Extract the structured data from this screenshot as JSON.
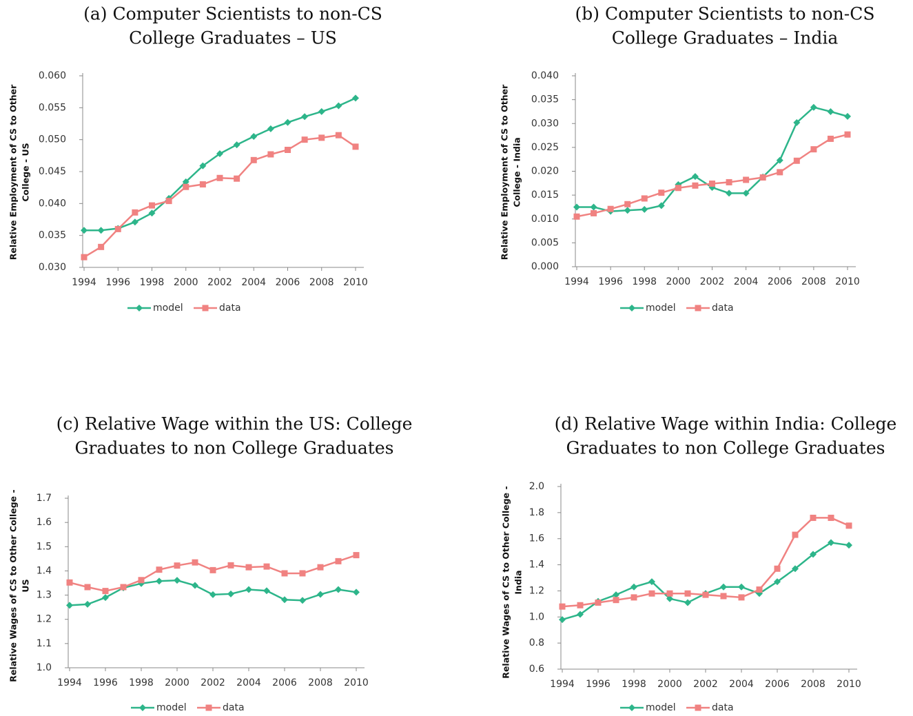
{
  "chart_data": [
    {
      "type": "line",
      "title": [
        "(a) Computer Scientists to non-CS",
        "College Graduates – US"
      ],
      "ylabel": [
        "Relative Employment of CS to Other",
        "College - US"
      ],
      "x": [
        1994,
        1995,
        1996,
        1997,
        1998,
        1999,
        2000,
        2001,
        2002,
        2003,
        2004,
        2005,
        2006,
        2007,
        2008,
        2009,
        2010
      ],
      "xlim": [
        1994,
        2010
      ],
      "xticks": [
        1994,
        1996,
        1998,
        2000,
        2002,
        2004,
        2006,
        2008,
        2010
      ],
      "ylim": [
        0.03,
        0.06
      ],
      "yticks": [
        {
          "value": 0.03,
          "label": "0.030"
        },
        {
          "value": 0.035,
          "label": "0.035"
        },
        {
          "value": 0.04,
          "label": "0.040"
        },
        {
          "value": 0.045,
          "label": "0.045"
        },
        {
          "value": 0.05,
          "label": "0.050"
        },
        {
          "value": 0.055,
          "label": "0.055"
        },
        {
          "value": 0.06,
          "label": "0.060"
        }
      ],
      "legend": "bottom",
      "series": [
        {
          "name": "model",
          "color": "#2db58a",
          "marker": "diamond",
          "values": [
            0.0358,
            0.0358,
            0.0361,
            0.0371,
            0.0385,
            0.0408,
            0.0434,
            0.0459,
            0.0478,
            0.0492,
            0.0505,
            0.0517,
            0.0527,
            0.0536,
            0.0544,
            0.0553,
            0.0565
          ]
        },
        {
          "name": "data",
          "color": "#f08281",
          "marker": "square",
          "values": [
            0.0316,
            0.0332,
            0.036,
            0.0386,
            0.0397,
            0.0404,
            0.0426,
            0.043,
            0.044,
            0.0439,
            0.0468,
            0.0477,
            0.0484,
            0.05,
            0.0503,
            0.0507,
            0.0489
          ]
        }
      ]
    },
    {
      "type": "line",
      "title": [
        "(b) Computer Scientists to non-CS",
        "College Graduates – India"
      ],
      "ylabel": [
        "Relative Employment of CS to Other",
        "College - India"
      ],
      "x": [
        1994,
        1995,
        1996,
        1997,
        1998,
        1999,
        2000,
        2001,
        2002,
        2003,
        2004,
        2005,
        2006,
        2007,
        2008,
        2009,
        2010
      ],
      "xlim": [
        1994,
        2010
      ],
      "xticks": [
        1994,
        1996,
        1998,
        2000,
        2002,
        2004,
        2006,
        2008,
        2010
      ],
      "ylim": [
        0,
        0.04
      ],
      "yticks": [
        {
          "value": 0,
          "label": "0.000"
        },
        {
          "value": 0.005,
          "label": "0.005"
        },
        {
          "value": 0.01,
          "label": "0.010"
        },
        {
          "value": 0.015,
          "label": "0.015"
        },
        {
          "value": 0.02,
          "label": "0.020"
        },
        {
          "value": 0.025,
          "label": "0.025"
        },
        {
          "value": 0.03,
          "label": "0.030"
        },
        {
          "value": 0.035,
          "label": "0.035"
        },
        {
          "value": 0.04,
          "label": "0.040"
        }
      ],
      "legend": "bottom",
      "series": [
        {
          "name": "model",
          "color": "#2db58a",
          "marker": "diamond",
          "values": [
            0.0125,
            0.0125,
            0.0116,
            0.0118,
            0.012,
            0.0128,
            0.0172,
            0.0189,
            0.0166,
            0.0154,
            0.0154,
            0.0188,
            0.0223,
            0.0302,
            0.0334,
            0.0325,
            0.0315
          ]
        },
        {
          "name": "data",
          "color": "#f08281",
          "marker": "square",
          "values": [
            0.0105,
            0.0112,
            0.0121,
            0.0131,
            0.0143,
            0.0155,
            0.0165,
            0.017,
            0.0174,
            0.0177,
            0.0182,
            0.0187,
            0.0198,
            0.0222,
            0.0246,
            0.0268,
            0.0277
          ]
        }
      ]
    },
    {
      "type": "line",
      "title": [
        "(c) Relative Wage within the US: College",
        "Graduates to non College Graduates"
      ],
      "ylabel": [
        "Relative Wages of CS to Other College -",
        "US"
      ],
      "x": [
        1994,
        1995,
        1996,
        1997,
        1998,
        1999,
        2000,
        2001,
        2002,
        2003,
        2004,
        2005,
        2006,
        2007,
        2008,
        2009,
        2010
      ],
      "xlim": [
        1994,
        2010
      ],
      "xticks": [
        1994,
        1996,
        1998,
        2000,
        2002,
        2004,
        2006,
        2008,
        2010
      ],
      "ylim": [
        1,
        1.7
      ],
      "yticks": [
        {
          "value": 1,
          "label": "1.0"
        },
        1.1,
        1.2,
        1.3,
        1.4,
        1.5,
        1.6,
        1.7
      ],
      "legend": "bottom",
      "series": [
        {
          "name": "model",
          "color": "#2db58a",
          "marker": "diamond",
          "values": [
            1.258,
            1.262,
            1.29,
            1.33,
            1.348,
            1.358,
            1.361,
            1.34,
            1.302,
            1.305,
            1.323,
            1.318,
            1.281,
            1.278,
            1.303,
            1.323,
            1.312
          ]
        },
        {
          "name": "data",
          "color": "#f08281",
          "marker": "square",
          "values": [
            1.352,
            1.333,
            1.317,
            1.333,
            1.362,
            1.405,
            1.422,
            1.435,
            1.403,
            1.423,
            1.415,
            1.418,
            1.39,
            1.39,
            1.415,
            1.44,
            1.465
          ]
        }
      ]
    },
    {
      "type": "line",
      "title": [
        "(d) Relative Wage within India: College",
        "Graduates to non College Graduates"
      ],
      "ylabel": [
        "Relative Wages of CS to Other College -",
        "India"
      ],
      "x": [
        1994,
        1995,
        1996,
        1997,
        1998,
        1999,
        2000,
        2001,
        2002,
        2003,
        2004,
        2005,
        2006,
        2007,
        2008,
        2009,
        2010
      ],
      "xlim": [
        1994,
        2010
      ],
      "xticks": [
        1994,
        1996,
        1998,
        2000,
        2002,
        2004,
        2006,
        2008,
        2010
      ],
      "ylim": [
        0.6,
        2
      ],
      "yticks": [
        0.6,
        0.8,
        {
          "value": 1,
          "label": "1.0"
        },
        1.2,
        1.4,
        1.6,
        1.8,
        {
          "value": 2,
          "label": "2.0"
        }
      ],
      "legend": "bottom",
      "series": [
        {
          "name": "model",
          "color": "#2db58a",
          "marker": "diamond",
          "values": [
            0.98,
            1.02,
            1.12,
            1.17,
            1.23,
            1.27,
            1.14,
            1.11,
            1.18,
            1.23,
            1.23,
            1.18,
            1.27,
            1.37,
            1.48,
            1.57,
            1.55
          ]
        },
        {
          "name": "data",
          "color": "#f08281",
          "marker": "square",
          "values": [
            1.08,
            1.09,
            1.11,
            1.13,
            1.15,
            1.18,
            1.18,
            1.18,
            1.17,
            1.16,
            1.15,
            1.21,
            1.37,
            1.63,
            1.76,
            1.76,
            1.7
          ]
        }
      ]
    }
  ]
}
